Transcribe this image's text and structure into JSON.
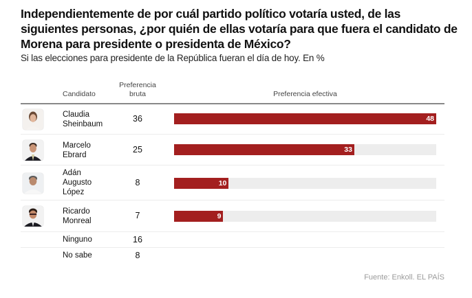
{
  "title": "Independientemente de por cuál partido político votaría usted, de las siguientes personas, ¿por quién de ellas votaría para que fuera el candidato de Morena para presidente o presidenta de México?",
  "subtitle": "Si las elecciones para presidente de la República fueran el día de hoy. En %",
  "source": "Fuente: Enkoll. EL PAÍS",
  "colors": {
    "bar": "#a31f1f",
    "track": "#ededed",
    "text": "#111111",
    "source": "#9a9a9a"
  },
  "chart_data": {
    "type": "bar",
    "title": "Independientemente de por cuál partido político votaría usted, de las siguientes personas, ¿por quién de ellas votaría para que fuera el candidato de Morena para presidente o presidenta de México?",
    "subtitle": "Si las elecciones para presidente de la República fueran el día de hoy. En %",
    "orientation": "horizontal",
    "columns": [
      "Candidato",
      "Preferencia bruta",
      "Preferencia efectiva"
    ],
    "categories": [
      "Claudia Sheinbaum",
      "Marcelo Ebrard",
      "Adán Augusto López",
      "Ricardo Monreal",
      "Ninguno",
      "No sabe"
    ],
    "series": [
      {
        "name": "Preferencia bruta",
        "values": [
          36,
          25,
          8,
          7,
          16,
          8
        ]
      },
      {
        "name": "Preferencia efectiva",
        "values": [
          48,
          33,
          10,
          9,
          null,
          null
        ]
      }
    ],
    "xlim": [
      0,
      48
    ],
    "unit": "%",
    "source": "Fuente: Enkoll. EL PAÍS"
  },
  "table": {
    "headers": {
      "candidato": "Candidato",
      "bruta": "Preferencia\nbruta",
      "efectiva": "Preferencia efectiva"
    },
    "rows": [
      {
        "name": "Claudia\nSheinbaum",
        "photo": "claudia-sheinbaum-photo",
        "bruta": "36",
        "efectiva": 48,
        "efectiva_label": "48"
      },
      {
        "name": "Marcelo\nEbrard",
        "photo": "marcelo-ebrard-photo",
        "bruta": "25",
        "efectiva": 33,
        "efectiva_label": "33"
      },
      {
        "name": "Adán\nAugusto\nLópez",
        "photo": "adan-augusto-lopez-photo",
        "bruta": "8",
        "efectiva": 10,
        "efectiva_label": "10"
      },
      {
        "name": "Ricardo\nMonreal",
        "photo": "ricardo-monreal-photo",
        "bruta": "7",
        "efectiva": 9,
        "efectiva_label": "9"
      },
      {
        "name": "Ninguno",
        "bruta": "16"
      },
      {
        "name": "No sabe",
        "bruta": "8"
      }
    ],
    "max_efectiva": 48
  }
}
